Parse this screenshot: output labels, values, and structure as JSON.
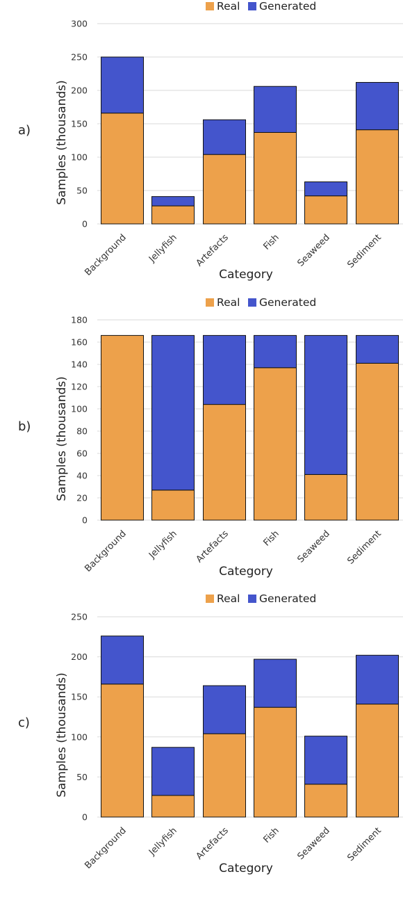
{
  "colors": {
    "real": "#EDA14B",
    "generated": "#4455CC",
    "grid": "#d9d9d9",
    "bar_stroke": "#111111"
  },
  "caption": "",
  "chart_data": [
    {
      "type": "bar",
      "stacked": true,
      "panel_label": "a)",
      "xlabel": "Category",
      "ylabel": "Samples (thousands)",
      "ylim": [
        0,
        300
      ],
      "yticks": [
        0,
        50,
        100,
        150,
        200,
        250,
        300
      ],
      "legend_position": "top",
      "grid": true,
      "categories": [
        "Background",
        "Jellyfish",
        "Artefacts",
        "Fish",
        "Seaweed",
        "Sediment"
      ],
      "series": [
        {
          "name": "Real",
          "values": [
            166,
            27,
            104,
            137,
            42,
            141
          ]
        },
        {
          "name": "Generated",
          "values": [
            84,
            14,
            52,
            69,
            21,
            71
          ]
        }
      ]
    },
    {
      "type": "bar",
      "stacked": true,
      "panel_label": "b)",
      "xlabel": "Category",
      "ylabel": "Samples (thousands)",
      "ylim": [
        0,
        180
      ],
      "yticks": [
        0,
        20,
        40,
        60,
        80,
        100,
        120,
        140,
        160,
        180
      ],
      "legend_position": "top",
      "grid": true,
      "categories": [
        "Background",
        "Jellyfish",
        "Artefacts",
        "Fish",
        "Seaweed",
        "Sediment"
      ],
      "series": [
        {
          "name": "Real",
          "values": [
            166,
            27,
            104,
            137,
            41,
            141
          ]
        },
        {
          "name": "Generated",
          "values": [
            0,
            139,
            62,
            29,
            125,
            25
          ]
        }
      ]
    },
    {
      "type": "bar",
      "stacked": true,
      "panel_label": "c)",
      "xlabel": "Category",
      "ylabel": "Samples (thousands)",
      "ylim": [
        0,
        250
      ],
      "yticks": [
        0,
        50,
        100,
        150,
        200,
        250
      ],
      "legend_position": "top",
      "grid": true,
      "categories": [
        "Background",
        "Jellyfish",
        "Artefacts",
        "Fish",
        "Seaweed",
        "Sediment"
      ],
      "series": [
        {
          "name": "Real",
          "values": [
            166,
            27,
            104,
            137,
            41,
            141
          ]
        },
        {
          "name": "Generated",
          "values": [
            60,
            60,
            60,
            60,
            60,
            61
          ]
        }
      ]
    }
  ]
}
